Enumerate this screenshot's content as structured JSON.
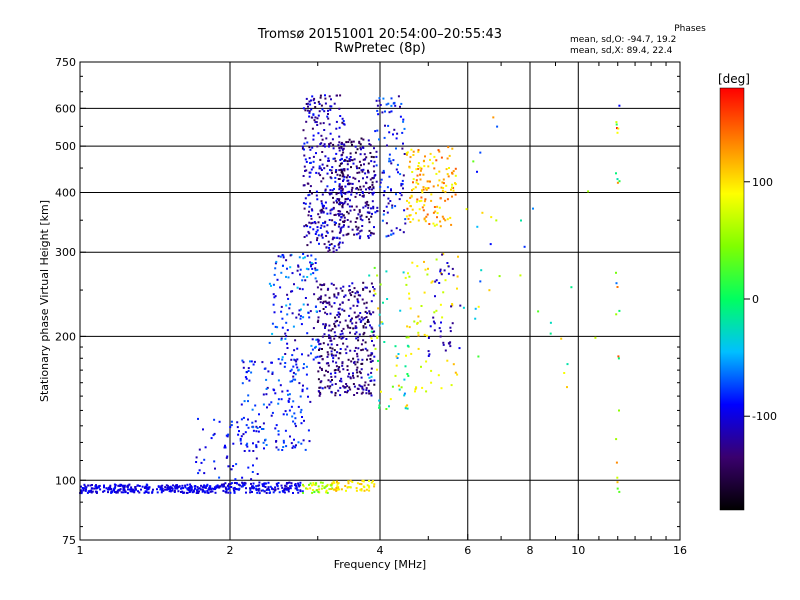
{
  "chart_data": {
    "type": "scatter",
    "title": "Tromsø 20151001 20:54:00–20:55:43",
    "subtitle": "RwPretec (8p)",
    "xlabel": "Frequency [MHz]",
    "ylabel": "Stationary phase Virtual Height [km]",
    "x_scale": "log",
    "y_scale": "log",
    "xlim": [
      1,
      16
    ],
    "ylim": [
      75,
      750
    ],
    "x_ticks": [
      1,
      2,
      4,
      6,
      8,
      10,
      16
    ],
    "x_tick_labels": [
      "1",
      "2",
      "4",
      "6",
      "8",
      "10",
      "16"
    ],
    "y_ticks": [
      75,
      100,
      200,
      300,
      400,
      500,
      600,
      750
    ],
    "y_tick_labels": [
      "75",
      "100",
      "200",
      "300",
      "400",
      "500",
      "600",
      "750"
    ],
    "grid": true,
    "stats": {
      "header": "Phases",
      "line_o": "mean, sd,O: -94.7, 19.2",
      "line_x": "mean, sd,X: 89.4, 22.4"
    },
    "colorbar": {
      "label": "[deg]",
      "range": [
        -180,
        180
      ],
      "ticks": [
        100,
        0,
        -100
      ],
      "tick_labels": [
        "100",
        "0",
        "-100"
      ],
      "colors": [
        "#000000",
        "#3a006e",
        "#0000ff",
        "#00c0ff",
        "#00ff60",
        "#80ff00",
        "#ffff00",
        "#ff8000",
        "#ff0000"
      ]
    },
    "clusters": [
      {
        "x": [
          1.0,
          1.9
        ],
        "y": [
          94,
          98
        ],
        "n": 300,
        "phase": [
          -110,
          -85
        ]
      },
      {
        "x": [
          1.9,
          2.8
        ],
        "y": [
          94,
          99
        ],
        "n": 160,
        "phase": [
          -115,
          -80
        ]
      },
      {
        "x": [
          2.8,
          3.3
        ],
        "y": [
          94,
          99
        ],
        "n": 50,
        "phase": [
          20,
          110
        ]
      },
      {
        "x": [
          3.2,
          3.9
        ],
        "y": [
          95,
          100
        ],
        "n": 50,
        "phase": [
          80,
          120
        ]
      },
      {
        "x": [
          1.7,
          2.3
        ],
        "y": [
          100,
          135
        ],
        "n": 60,
        "phase": [
          -115,
          -70
        ]
      },
      {
        "x": [
          2.1,
          2.9
        ],
        "y": [
          115,
          180
        ],
        "n": 160,
        "phase": [
          -115,
          -60
        ]
      },
      {
        "x": [
          2.4,
          3.0
        ],
        "y": [
          170,
          300
        ],
        "n": 140,
        "phase": [
          -125,
          -40
        ]
      },
      {
        "x": [
          2.8,
          3.4
        ],
        "y": [
          300,
          640
        ],
        "n": 320,
        "phase": [
          -150,
          -80
        ]
      },
      {
        "x": [
          3.0,
          3.9
        ],
        "y": [
          150,
          260
        ],
        "n": 380,
        "phase": [
          -160,
          -95
        ]
      },
      {
        "x": [
          3.3,
          3.9
        ],
        "y": [
          320,
          520
        ],
        "n": 260,
        "phase": [
          -160,
          -95
        ]
      },
      {
        "x": [
          3.9,
          4.5
        ],
        "y": [
          320,
          640
        ],
        "n": 110,
        "phase": [
          -130,
          -60
        ]
      },
      {
        "x": [
          3.8,
          4.6
        ],
        "y": [
          140,
          280
        ],
        "n": 60,
        "phase": [
          -60,
          120
        ]
      },
      {
        "x": [
          4.5,
          5.7
        ],
        "y": [
          340,
          500
        ],
        "n": 150,
        "phase": [
          80,
          150
        ]
      },
      {
        "x": [
          4.5,
          5.8
        ],
        "y": [
          150,
          300
        ],
        "n": 60,
        "phase": [
          60,
          120
        ]
      },
      {
        "x": [
          5.0,
          5.8
        ],
        "y": [
          180,
          300
        ],
        "n": 40,
        "phase": [
          -130,
          -90
        ]
      },
      {
        "x": [
          5.8,
          7.0
        ],
        "y": [
          150,
          600
        ],
        "n": 20,
        "phase": [
          -100,
          130
        ]
      },
      {
        "x": [
          7.5,
          11.0
        ],
        "y": [
          150,
          550
        ],
        "n": 14,
        "phase": [
          -120,
          120
        ]
      },
      {
        "x": [
          11.9,
          12.1
        ],
        "y": [
          90,
          650
        ],
        "n": 24,
        "phase": [
          -100,
          180
        ]
      }
    ]
  }
}
